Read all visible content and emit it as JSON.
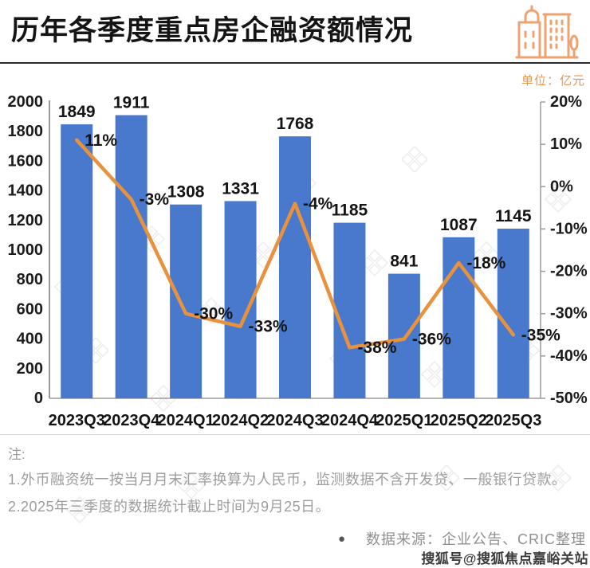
{
  "header": {
    "title": "历年各季度重点房企融资额情况",
    "unit_label": "单位：亿元",
    "accent_color": "#EDA272"
  },
  "chart_data": {
    "type": "bar",
    "title": "历年各季度重点房企融资额情况",
    "categories": [
      "2023Q3",
      "2023Q4",
      "2024Q1",
      "2024Q2",
      "2024Q3",
      "2024Q4",
      "2025Q1",
      "2025Q2",
      "2025Q3"
    ],
    "series": [
      {
        "name": "融资额(亿元)",
        "type": "bar",
        "color": "#4879CC",
        "values": [
          1849,
          1911,
          1308,
          1331,
          1768,
          1185,
          841,
          1087,
          1145
        ],
        "labels": [
          "1849",
          "1911",
          "1308",
          "1331",
          "1768",
          "1185",
          "841",
          "1087",
          "1145"
        ]
      },
      {
        "name": "同比增速",
        "type": "line",
        "color": "#E8923E",
        "values": [
          11,
          -3,
          -30,
          -33,
          -4,
          -38,
          -36,
          -18,
          -35
        ],
        "labels": [
          "11%",
          "-3%",
          "-30%",
          "-33%",
          "-4%",
          "-38%",
          "-36%",
          "-18%",
          "-35%"
        ]
      }
    ],
    "left_axis": {
      "min": 0,
      "max": 2000,
      "step": 200,
      "labels": [
        "2000",
        "1800",
        "1600",
        "1400",
        "1200",
        "1000",
        "800",
        "600",
        "400",
        "200",
        "0"
      ]
    },
    "right_axis": {
      "min": -50,
      "max": 20,
      "step": 10,
      "labels": [
        "20%",
        "10%",
        "0%",
        "-10%",
        "-20%",
        "-30%",
        "-40%",
        "-50%"
      ]
    },
    "grid": false,
    "legend": "none"
  },
  "notes": {
    "label": "注:",
    "line1": "1.外币融资统一按当月月末汇率换算为人民币，监测数据不含开发贷、一般银行贷款。",
    "line2": "2.2025年三季度的数据统计截止时间为9月25日。"
  },
  "footer": {
    "bullet": "●",
    "source": "数据来源：企业公告、CRIC整理",
    "watermark": "搜狐号@搜狐焦点嘉峪关站"
  }
}
